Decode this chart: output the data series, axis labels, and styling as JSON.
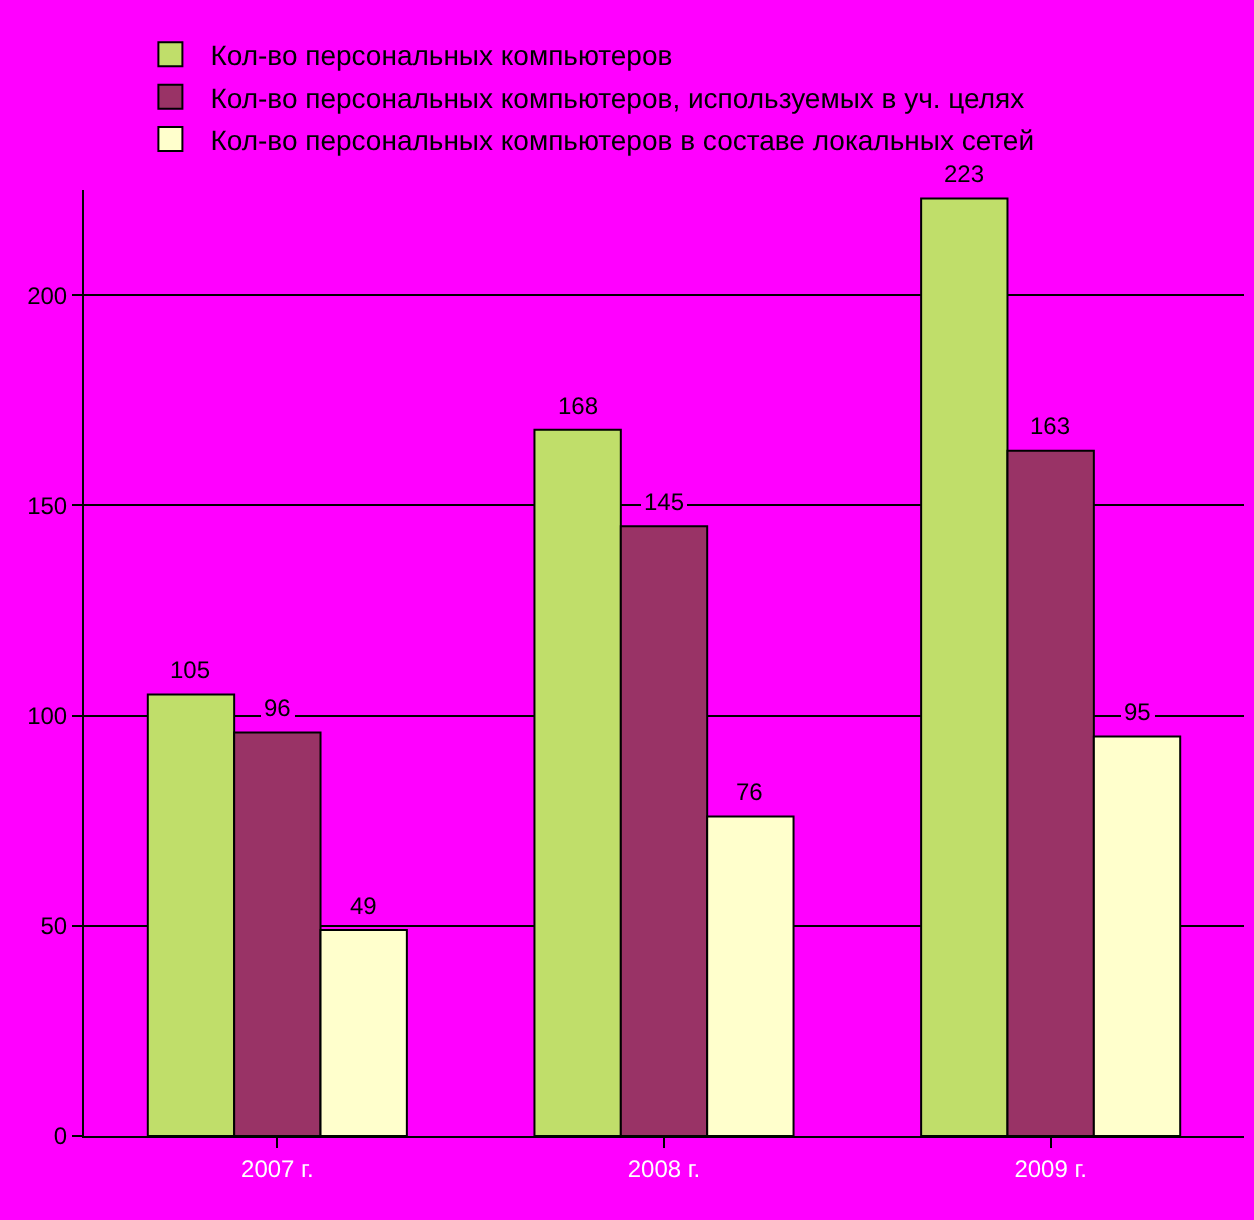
{
  "chart_data": {
    "type": "bar",
    "categories": [
      "2007 г.",
      "2008 г.",
      "2009 г."
    ],
    "series": [
      {
        "name": "Кол-во персональных компьютеров",
        "color": "#c0de6a",
        "values": [
          105,
          168,
          223
        ]
      },
      {
        "name": "Кол-во персональных компьютеров, используемых в уч. целях",
        "color": "#993366",
        "values": [
          96,
          145,
          163
        ]
      },
      {
        "name": "Кол-во персональных компьютеров в составе локальных сетей",
        "color": "#ffffcc",
        "values": [
          49,
          76,
          95
        ]
      }
    ],
    "ylim": [
      0,
      225
    ],
    "yticks": [
      0,
      50,
      100,
      150,
      200
    ],
    "grid": "y",
    "legend": "top",
    "data_labels": true
  }
}
